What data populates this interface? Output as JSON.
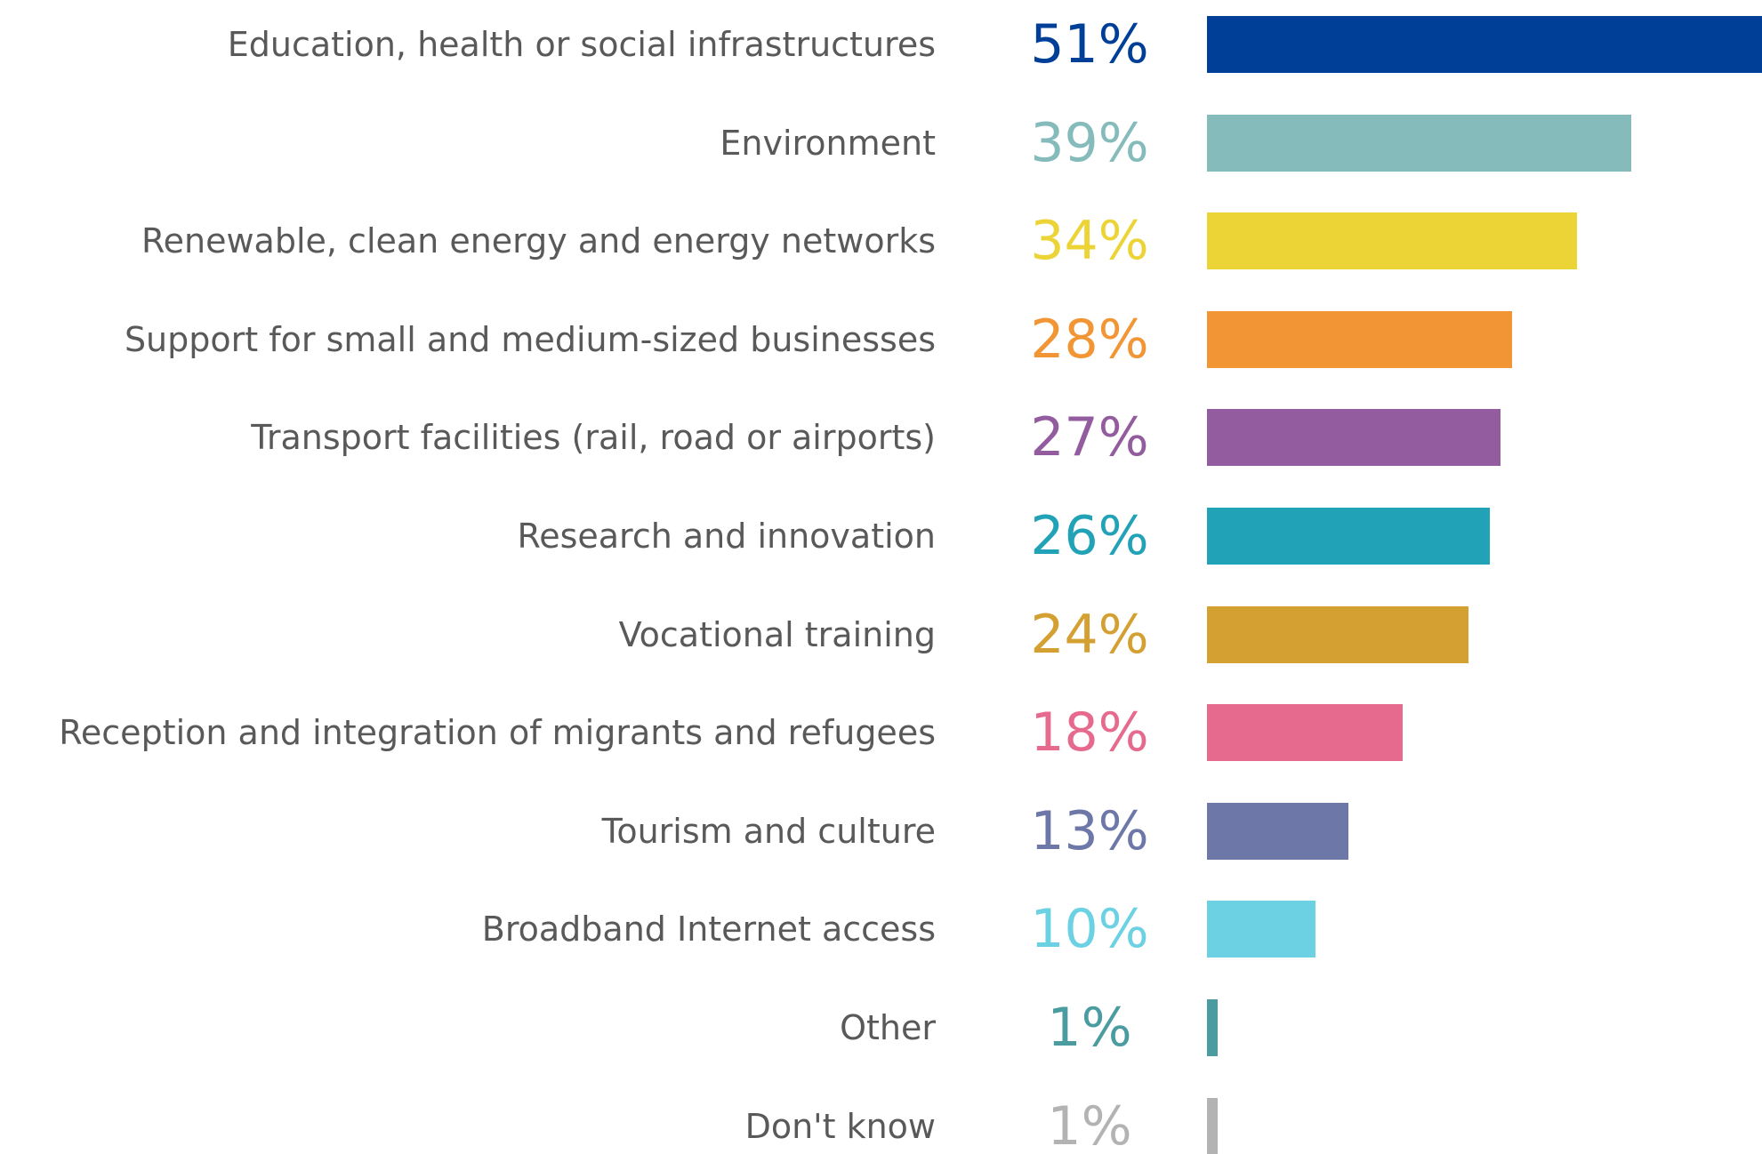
{
  "chart_data": {
    "type": "bar",
    "orientation": "horizontal",
    "categories": [
      "Education, health or social infrastructures",
      "Environment",
      "Renewable, clean energy and energy networks",
      "Support for small and medium-sized businesses",
      "Transport facilities (rail, road or airports)",
      "Research and innovation",
      "Vocational training",
      "Reception and integration of migrants and refugees",
      "Tourism and culture",
      "Broadband Internet access",
      "Other",
      "Don't know"
    ],
    "values": [
      51,
      39,
      34,
      28,
      27,
      26,
      24,
      18,
      13,
      10,
      1,
      1
    ],
    "value_labels": [
      "51%",
      "39%",
      "34%",
      "28%",
      "27%",
      "26%",
      "24%",
      "18%",
      "13%",
      "10%",
      "1%",
      "1%"
    ],
    "colors": [
      "#003f98",
      "#86bbbc",
      "#ecd437",
      "#f29535",
      "#935c9e",
      "#22a2b7",
      "#d4a032",
      "#e66a8d",
      "#6d78a8",
      "#6bd1e3",
      "#4a9ca0",
      "#b3b3b3"
    ],
    "xlim": [
      0,
      51
    ]
  }
}
